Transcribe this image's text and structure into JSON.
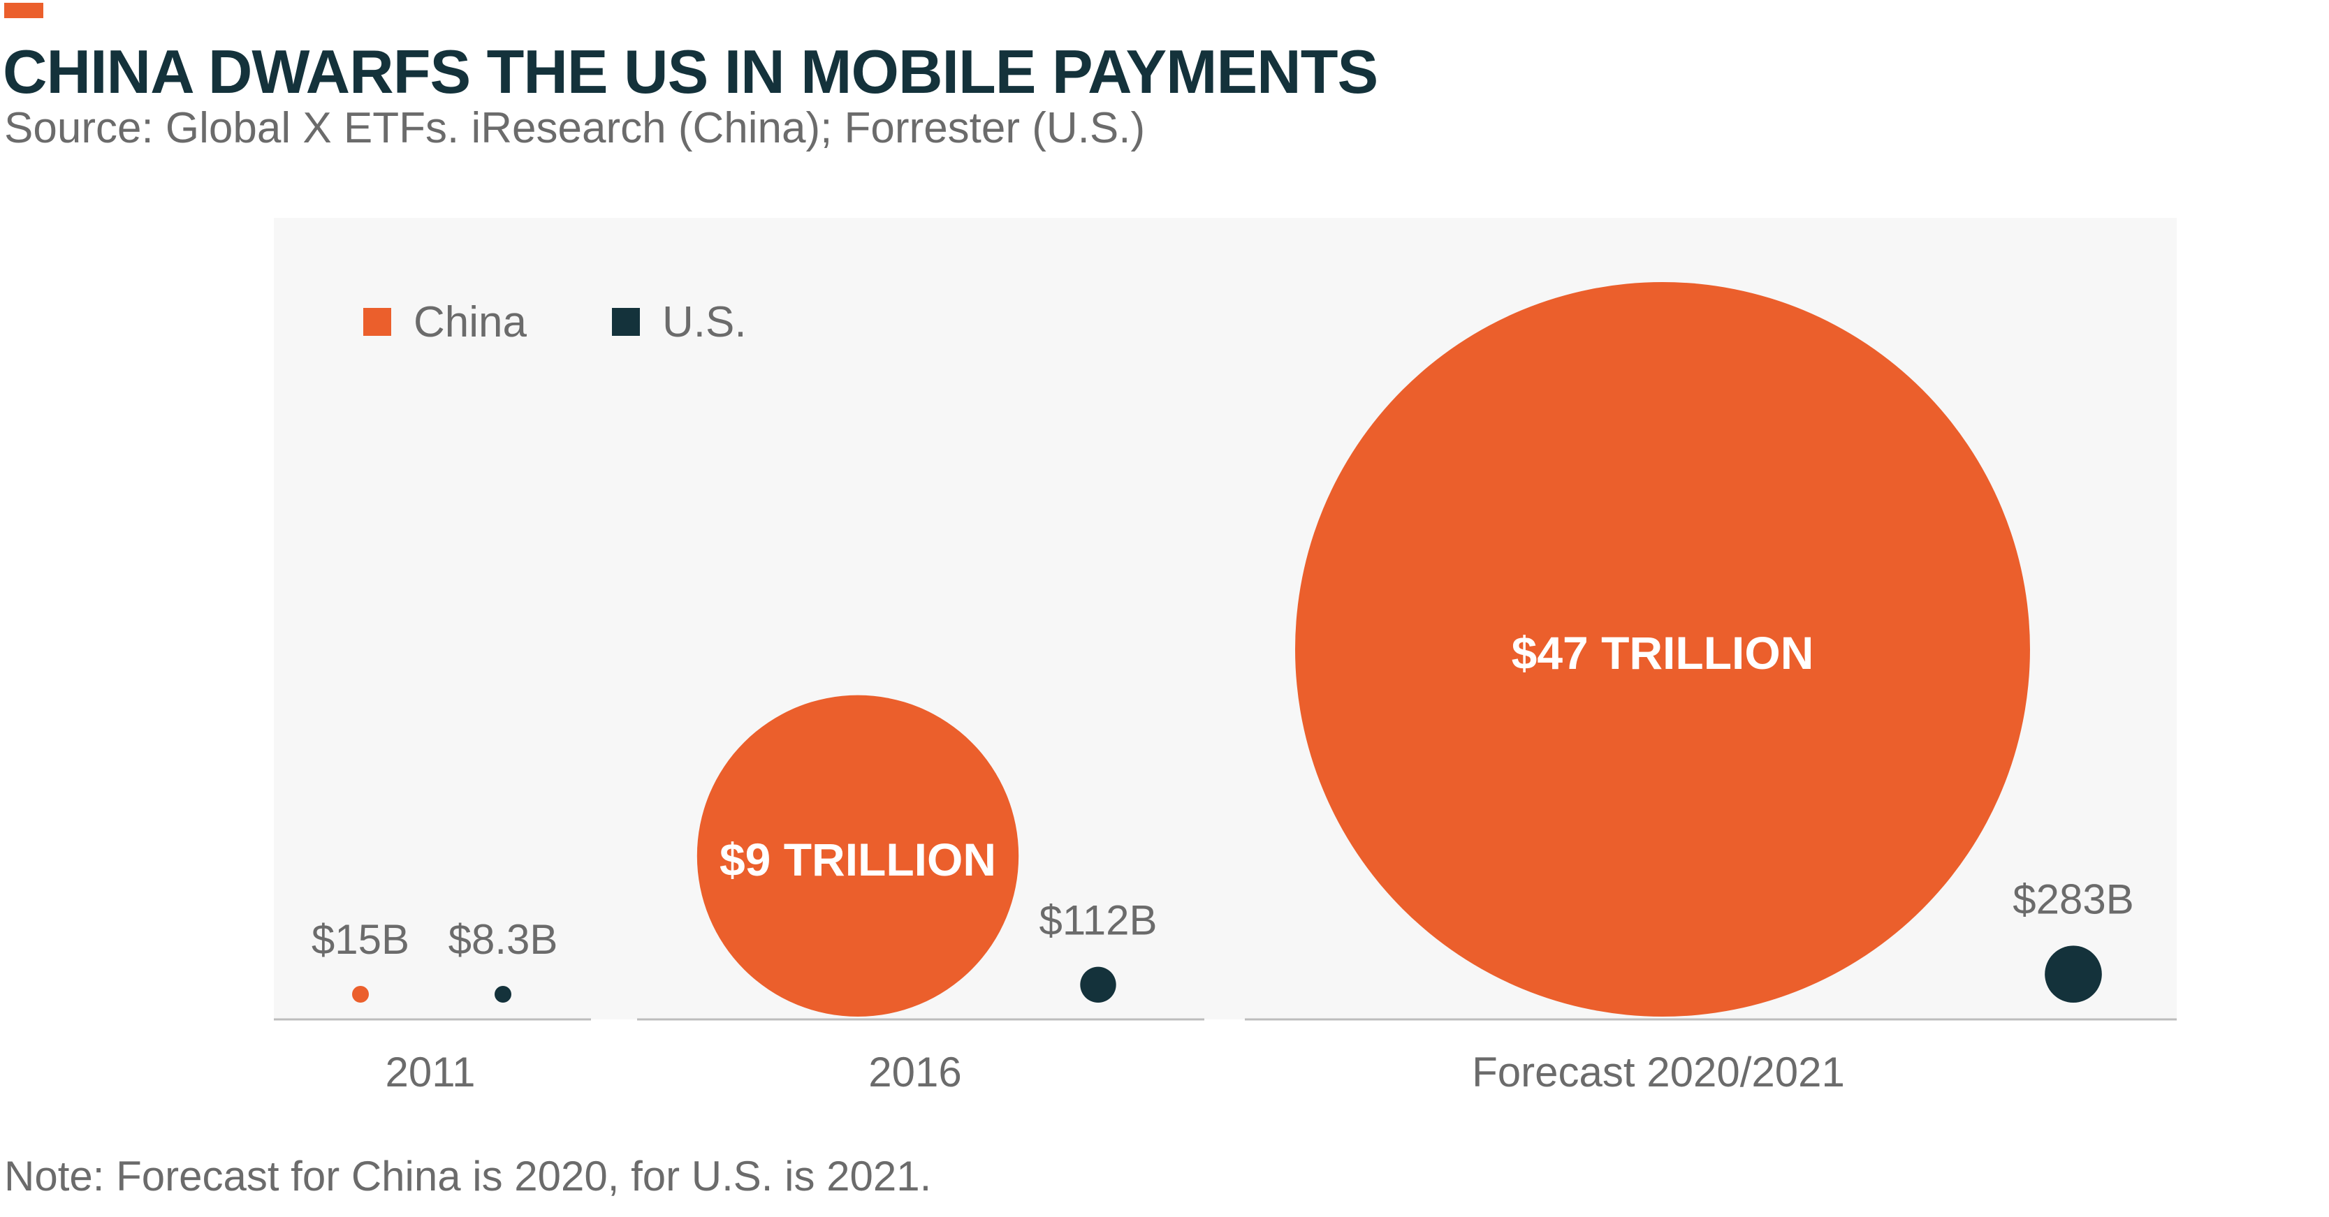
{
  "header": {
    "title": "CHINA DWARFS THE US IN MOBILE PAYMENTS",
    "source": "Source: Global X ETFs. iResearch (China); Forrester (U.S.)"
  },
  "footnote": "Note: Forecast for China is 2020, for U.S. is 2021.",
  "colors": {
    "accent": "#EB5F2C",
    "china": "#EB5F2C",
    "us": "#14323B",
    "plot_background": "#F7F7F7",
    "axis": "#BDBDBD",
    "text_muted": "#6B6B6B"
  },
  "chart_data": {
    "type": "bubble",
    "categories": [
      "2011",
      "2016",
      "Forecast 2020/2021"
    ],
    "series": [
      {
        "name": "China",
        "values_usd_billion": [
          15,
          9000,
          47000
        ],
        "labels": [
          "$15B",
          "$9 TRILLION",
          "$47 TRILLION"
        ]
      },
      {
        "name": "U.S.",
        "values_usd_billion": [
          8.3,
          112,
          283
        ],
        "labels": [
          "$8.3B",
          "$112B",
          "$283B"
        ]
      }
    ],
    "legend": {
      "position": "top-left",
      "entries": [
        "China",
        "U.S."
      ]
    },
    "grid": false
  }
}
